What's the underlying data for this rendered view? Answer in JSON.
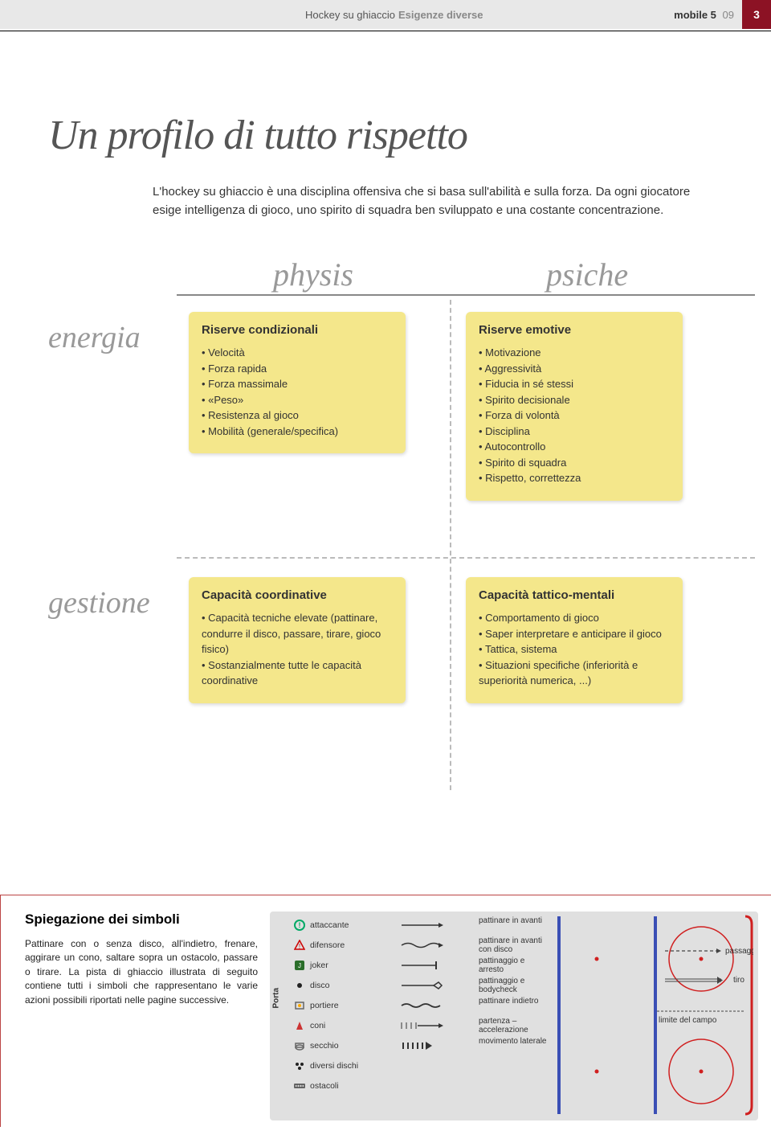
{
  "header": {
    "category": "Hockey su ghiaccio",
    "subcategory": "Esigenze diverse",
    "issue": "mobile 5",
    "issueno": "09",
    "page": "3"
  },
  "title": "Un profilo di tutto rispetto",
  "intro": "L'hockey su ghiaccio è una disciplina offensiva che si basa sull'abilità e sulla forza. Da ogni giocatore esige intelligenza di gioco, uno spirito di squadra ben sviluppato e una costante concentrazione.",
  "matrix": {
    "col1": "physis",
    "col2": "psiche",
    "row1": "energia",
    "row2": "gestione",
    "cards": [
      {
        "title": "Riserve condizionali",
        "items": [
          "Velocità",
          "Forza rapida",
          "Forza massimale",
          "«Peso»",
          "Resistenza al gioco",
          "Mobilità (generale/specifica)"
        ]
      },
      {
        "title": "Riserve emotive",
        "items": [
          "Motivazione",
          "Aggressività",
          "Fiducia in sé stessi",
          "Spirito decisionale",
          "Forza di volontà",
          "Disciplina",
          "Autocontrollo",
          "Spirito di squadra",
          "Rispetto, correttezza"
        ]
      },
      {
        "title": "Capacità coordinative",
        "items": [
          "Capacità tecniche elevate (pattinare, condurre il disco, passare, tirare, gioco fisico)",
          "Sostanzialmente tutte le capacità coordinative"
        ]
      },
      {
        "title": "Capacità tattico-mentali",
        "items": [
          "Comportamento di gioco",
          "Saper interpretare e anticipare il gioco",
          "Tattica, sistema",
          "Situazioni specifiche (inferiorità e superiorità numerica, ...)"
        ]
      }
    ]
  },
  "legend": {
    "title": "Spiegazione dei simboli",
    "text": "Pattinare con o senza disco, all'indietro, frenare, aggirare un cono, saltare sopra un ostacolo, passare o tirare. La pista di ghiaccio illustrata di seguito contiene tutti i simboli che rappresentano le varie azioni possibili riportati nelle pagine successive.",
    "porta": "Porta",
    "symbols": [
      {
        "name": "attaccante"
      },
      {
        "name": "difensore"
      },
      {
        "name": "joker"
      },
      {
        "name": "disco"
      },
      {
        "name": "portiere"
      },
      {
        "name": "coni"
      },
      {
        "name": "secchio"
      },
      {
        "name": "diversi dischi"
      },
      {
        "name": "ostacoli"
      }
    ],
    "actions": [
      {
        "name": "pattinare in avanti"
      },
      {
        "name": "pattinare in avanti con disco"
      },
      {
        "name": "pattinaggio e arresto"
      },
      {
        "name": "pattinaggio e bodycheck"
      },
      {
        "name": "pattinare indietro"
      },
      {
        "name": "partenza – accelerazione"
      },
      {
        "name": "movimento laterale"
      }
    ],
    "other": [
      {
        "name": "passaggio"
      },
      {
        "name": "tiro"
      },
      {
        "name": "limite del campo"
      }
    ]
  },
  "colors": {
    "card_bg": "#f4e78b",
    "accent": "#8c1224",
    "rink_bg": "#e0e0e0",
    "blue": "#3a4fb5",
    "red": "#d02020"
  }
}
